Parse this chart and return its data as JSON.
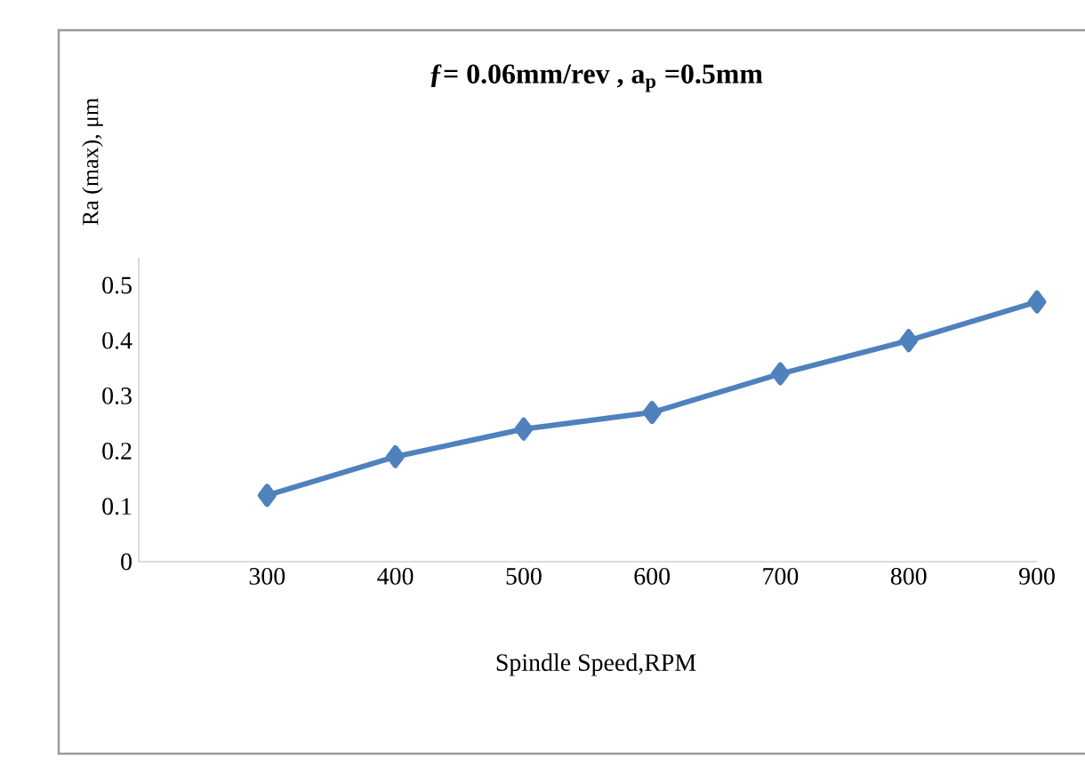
{
  "chart_data": {
    "type": "line",
    "title": "ƒ= 0.06mm/rev , a$_{p}$ =0.5mm",
    "ylabel": "Ra (max), μm",
    "xlabel": "Spindle Speed,RPM",
    "categories": [
      "300",
      "400",
      "500",
      "600",
      "700",
      "800",
      "900"
    ],
    "series": [
      {
        "color": "#4f81bd",
        "values": [
          0.12,
          0.19,
          0.24,
          0.27,
          0.34,
          0.4,
          0.47
        ]
      }
    ],
    "ylim": [
      0,
      0.55
    ],
    "yticks": [
      0,
      0.1,
      0.2,
      0.3,
      0.4,
      0.5
    ],
    "marker": "diamond",
    "line_style": "solid"
  }
}
